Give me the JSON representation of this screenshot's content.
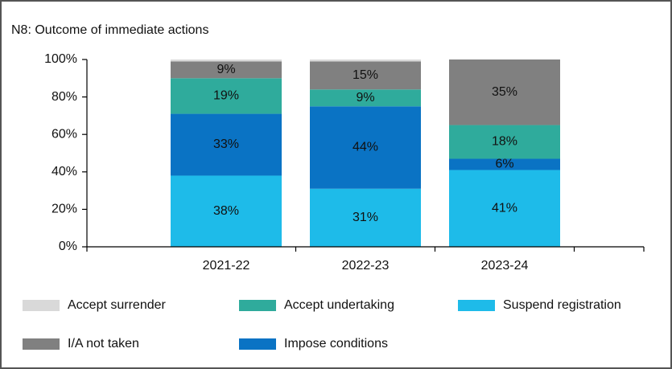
{
  "chart_data": {
    "type": "stacked_bar",
    "title": "N8: Outcome of immediate actions",
    "categories": [
      "2021-22",
      "2022-23",
      "2023-24"
    ],
    "series": [
      {
        "name": "Suspend registration",
        "color": "#1ebbe9",
        "values": [
          38,
          31,
          41
        ],
        "value_labels": [
          "38%",
          "31%",
          "41%"
        ]
      },
      {
        "name": "Impose conditions",
        "color": "#0a73c4",
        "values": [
          33,
          44,
          6
        ],
        "value_labels": [
          "33%",
          "44%",
          "6%"
        ]
      },
      {
        "name": "Accept undertaking",
        "color": "#2fab9c",
        "values": [
          19,
          9,
          18
        ],
        "value_labels": [
          "19%",
          "9%",
          "18%"
        ]
      },
      {
        "name": "I/A not taken",
        "color": "#808080",
        "values": [
          9,
          15,
          35
        ],
        "value_labels": [
          "9%",
          "15%",
          "35%"
        ]
      },
      {
        "name": "Accept surrender",
        "color": "#d9d9d9",
        "values": [
          1,
          1,
          0
        ]
      }
    ],
    "ylim": [
      0,
      100
    ],
    "yticks": [
      {
        "value": 0,
        "label": "0%"
      },
      {
        "value": 20,
        "label": "20%"
      },
      {
        "value": 40,
        "label": "40%"
      },
      {
        "value": 60,
        "label": "60%"
      },
      {
        "value": 80,
        "label": "80%"
      },
      {
        "value": 100,
        "label": "100%"
      }
    ],
    "legend": "bottom"
  }
}
